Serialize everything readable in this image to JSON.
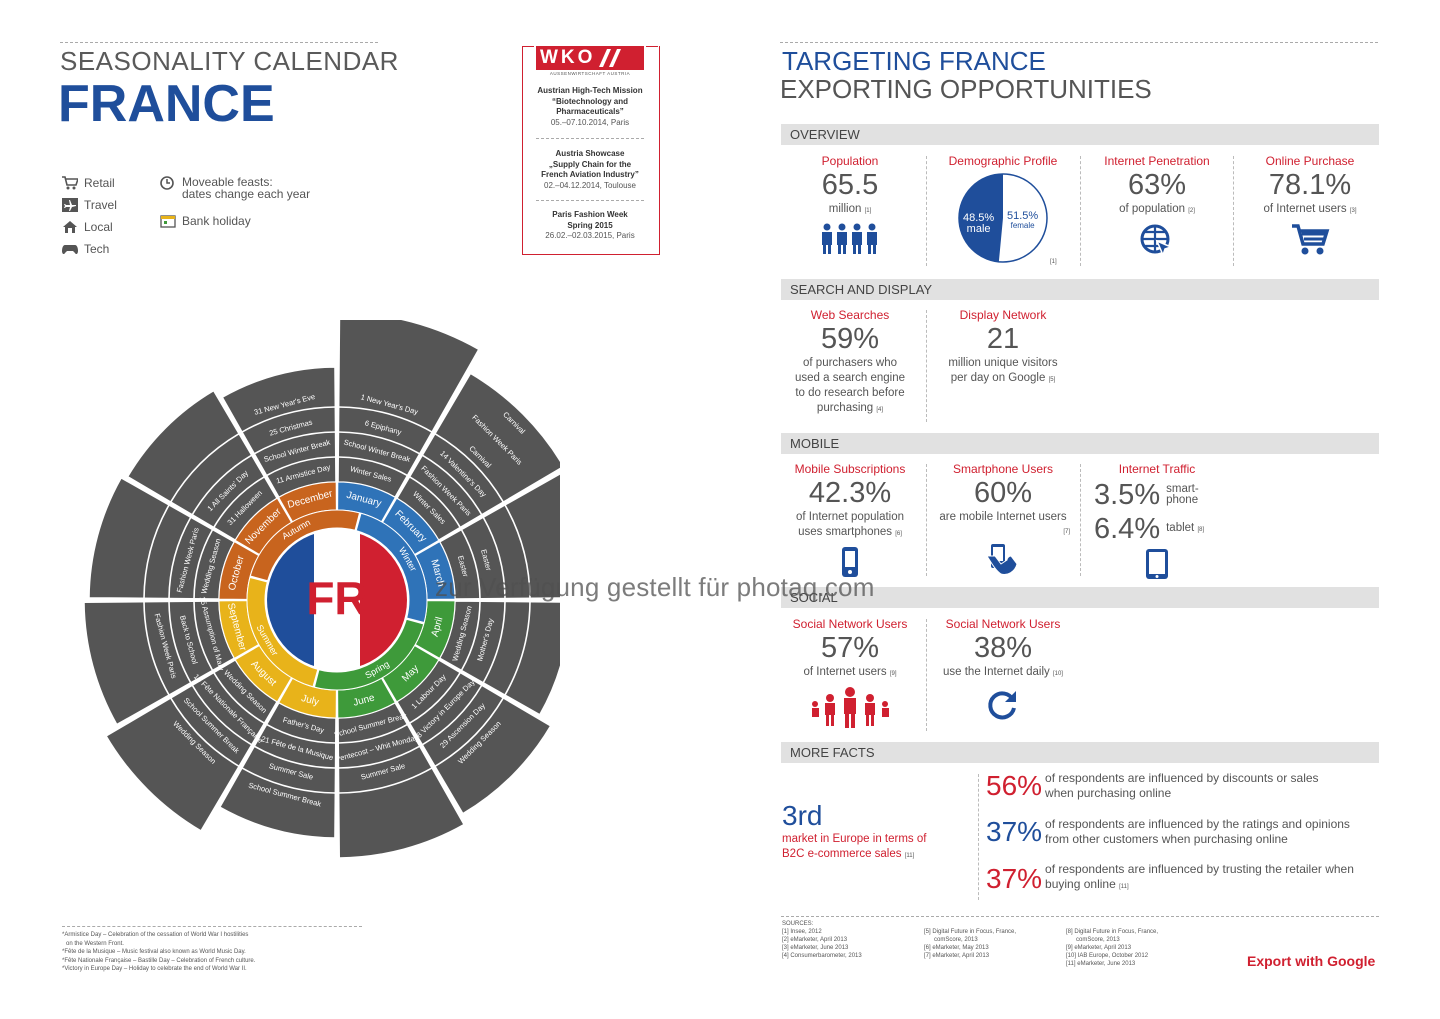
{
  "header": {
    "title_line1": "SEASONALITY CALENDAR",
    "title_line2": "FRANCE"
  },
  "legend": {
    "retail": "Retail",
    "travel": "Travel",
    "local": "Local",
    "tech": "Tech",
    "moveable_line1": "Moveable feasts:",
    "moveable_line2": "dates change each year",
    "bank_holiday": "Bank holiday"
  },
  "wko": {
    "logo_text": "WKO",
    "logo_sub": "AUSSENWIRTSCHAFT AUSTRIA",
    "events": [
      {
        "title1": "Austrian High-Tech Mission",
        "title2": "“Biotechnology and",
        "title3": "Pharmaceuticals”",
        "date": "05.–07.10.2014, Paris"
      },
      {
        "title1": "Austria Showcase",
        "title2": "„Supply Chain for the",
        "title3": "French Aviation Industry”",
        "date": "02.–04.12.2014, Toulouse"
      },
      {
        "title1": "Paris Fashion Week",
        "title2": "Spring 2015",
        "title3": "",
        "date": "26.02.–02.03.2015, Paris"
      }
    ]
  },
  "calendar": {
    "center": "FR",
    "seasons": [
      "Winter",
      "Spring",
      "Summer",
      "Autumn"
    ],
    "months": [
      "January",
      "February",
      "March",
      "April",
      "May",
      "June",
      "July",
      "August",
      "September",
      "October",
      "November",
      "December"
    ],
    "events_outer": [
      "Winter Sales",
      "School Winter Break",
      "6 Epiphany",
      "1 New Year's Day",
      "Winter Sales",
      "Fashion Week Paris",
      "14 Valentine's Day",
      "Carnival",
      "Fashion Week Paris",
      "Carnival",
      "Easter",
      "Easter",
      "Wedding Season",
      "Mother's Day",
      "1 Labour Day",
      "8 Victory in Europe Day",
      "29 Ascension Day",
      "Wedding Season",
      "School Summer Break",
      "Pentecost – Whit Monday",
      "Summer Sale",
      "Father's Day",
      "21 Fête de la Musique",
      "Summer Sale",
      "School Summer Break",
      "Wedding Season",
      "14 Fête Nationale Française",
      "School Summer Break",
      "Wedding Season",
      "15 Assumption of Mary",
      "Back to School",
      "Fashion Week Paris",
      "Wedding Season",
      "Fashion Week Paris",
      "31 Halloween",
      "1 All Saints' Day",
      "11 Armistice Day",
      "School Winter Break",
      "25 Christmas",
      "31 New Year's Eve"
    ],
    "colors": {
      "winter": "#2f73b8",
      "spring": "#3e9a3a",
      "summer": "#e8b31a",
      "autumn": "#c8641e",
      "grey": "#555555",
      "red": "#d02030",
      "blue": "#1f4e9b"
    }
  },
  "footnotes": [
    "*Armistice Day – Celebration of the cessation of World War I hostilities",
    "on the Western Front.",
    "*Fête de la Musique – Music festival also known as World Music Day.",
    "*Fête Nationale Française – Bastille Day – Celebration of French culture.",
    "*Victory in Europe Day – Holiday to celebrate the end of World War II."
  ],
  "right": {
    "title_line1": "TARGETING FRANCE",
    "title_line2": "EXPORTING OPPORTUNITIES",
    "overview": {
      "header": "OVERVIEW",
      "population": {
        "label": "Population",
        "value": "65.5",
        "unit": "million",
        "ref": "[1]"
      },
      "demographic": {
        "label": "Demographic Profile",
        "male_pct": "48.5%",
        "male": "male",
        "female_pct": "51.5%",
        "female": "female",
        "male_share": 0.485,
        "ref": "[1]"
      },
      "penetration": {
        "label": "Internet Penetration",
        "value": "63%",
        "unit": "of population",
        "ref": "[2]"
      },
      "purchase": {
        "label": "Online Purchase",
        "value": "78.1%",
        "unit": "of Internet users",
        "ref": "[3]"
      }
    },
    "search": {
      "header": "SEARCH AND DISPLAY",
      "web": {
        "label": "Web Searches",
        "value": "59%",
        "l1": "of purchasers who",
        "l2": "used a search engine",
        "l3": "to do research before",
        "l4": "purchasing",
        "ref": "[4]"
      },
      "display": {
        "label": "Display Network",
        "value": "21",
        "l1": "million unique visitors",
        "l2": "per day on Google",
        "ref": "[5]"
      }
    },
    "mobile": {
      "header": "MOBILE",
      "subs": {
        "label": "Mobile Subscriptions",
        "value": "42.3%",
        "l1": "of Internet population",
        "l2": "uses smartphones",
        "ref": "[6]"
      },
      "smart": {
        "label": "Smartphone Users",
        "value": "60%",
        "l1": "are mobile Internet users",
        "ref": "[7]"
      },
      "traffic": {
        "label": "Internet Traffic",
        "v1": "3.5%",
        "t1a": "smart-",
        "t1b": "phone",
        "v2": "6.4%",
        "t2": "tablet",
        "ref": "[8]"
      }
    },
    "social": {
      "header": "SOCIAL",
      "snu": {
        "label": "Social Network Users",
        "value": "57%",
        "l1": "of Internet users",
        "ref": "[9]"
      },
      "snu2": {
        "label": "Social Network Users",
        "value": "38%",
        "l1": "use the Internet daily",
        "ref": "[10]"
      }
    },
    "more": {
      "header": "MORE FACTS",
      "rank": "3rd",
      "rank_l1": "market in Europe in terms of",
      "rank_l2": "B2C e-commerce sales",
      "rank_ref": "[11]",
      "facts": [
        {
          "pct": "56%",
          "l1": "of respondents are influenced by discounts or sales",
          "l2": "when purchasing online"
        },
        {
          "pct": "37%",
          "l1": "of respondents are influenced by the ratings and opinions",
          "l2": "from other customers when purchasing online"
        },
        {
          "pct": "37%",
          "l1": "of respondents are influenced by trusting the retailer when",
          "l2": "buying online",
          "ref": "[11]"
        }
      ]
    },
    "sources": {
      "heading": "SOURCES:",
      "col1": [
        "[1] Insee, 2012",
        "[2] eMarketer, April 2013",
        "[3] eMarketer, June 2013",
        "[4] Consumerbarometer, 2013"
      ],
      "col2": [
        "[5] Digital Future in Focus, France,",
        "comScore, 2013",
        "[6] eMarketer, May 2013",
        "[7] eMarketer, April 2013"
      ],
      "col3": [
        "[8] Digital Future in Focus, France,",
        "comScore, 2013",
        "[9] eMarketer, April 2013",
        "[10] IAB Europe, October 2012",
        "[11] eMarketer, June 2013"
      ]
    },
    "export": "Export with Google"
  },
  "watermark": "zur Verfügung gestellt für photaq.com"
}
